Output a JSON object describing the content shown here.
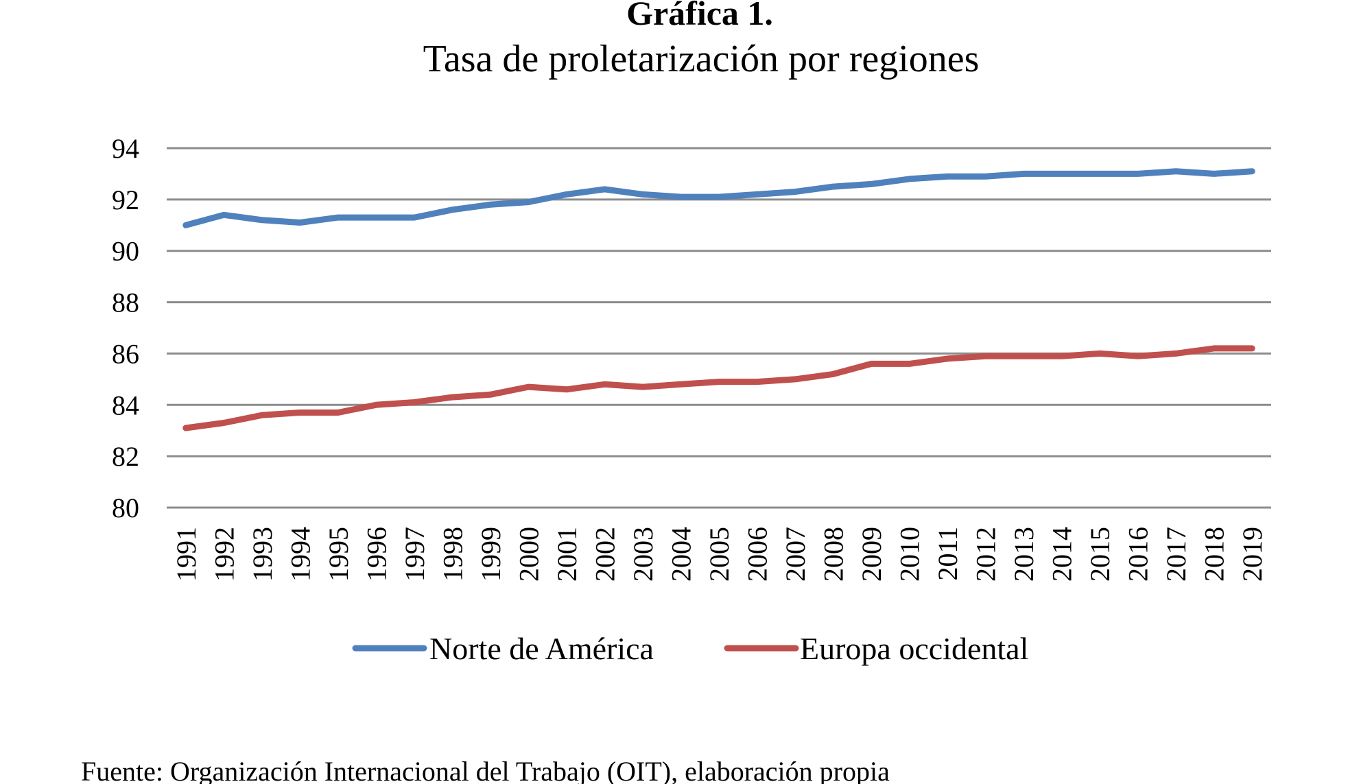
{
  "chart_data": {
    "type": "line",
    "title": "Gráfica 1.",
    "subtitle": "Tasa de proletarización  por regiones",
    "xlabel": "",
    "ylabel": "",
    "ylim": [
      80,
      94
    ],
    "yticks": [
      "94",
      "92",
      "90",
      "88",
      "86",
      "84",
      "82",
      "80"
    ],
    "grid": true,
    "legend_position": "bottom",
    "categories": [
      "1991",
      "1992",
      "1993",
      "1994",
      "1995",
      "1996",
      "1997",
      "1998",
      "1999",
      "2000",
      "2001",
      "2002",
      "2003",
      "2004",
      "2005",
      "2006",
      "2007",
      "2008",
      "2009",
      "2010",
      "2011",
      "2012",
      "2013",
      "2014",
      "2015",
      "2016",
      "2017",
      "2018",
      "2019"
    ],
    "series": [
      {
        "name": "Norte de América",
        "color": "#4f81bd",
        "values": [
          91.0,
          91.4,
          91.2,
          91.1,
          91.3,
          91.3,
          91.3,
          91.6,
          91.8,
          91.9,
          92.2,
          92.4,
          92.2,
          92.1,
          92.1,
          92.2,
          92.3,
          92.5,
          92.6,
          92.8,
          92.9,
          92.9,
          93.0,
          93.0,
          93.0,
          93.0,
          93.1,
          93.0,
          93.1
        ]
      },
      {
        "name": "Europa occidental",
        "color": "#c0504d",
        "values": [
          83.1,
          83.3,
          83.6,
          83.7,
          83.7,
          84.0,
          84.1,
          84.3,
          84.4,
          84.7,
          84.6,
          84.8,
          84.7,
          84.8,
          84.9,
          84.9,
          85.0,
          85.2,
          85.6,
          85.6,
          85.8,
          85.9,
          85.9,
          85.9,
          86.0,
          85.9,
          86.0,
          86.2,
          86.2
        ]
      }
    ]
  },
  "source_note": "Fuente: Organización  Internacional del Trabajo (OIT), elaboración propia"
}
